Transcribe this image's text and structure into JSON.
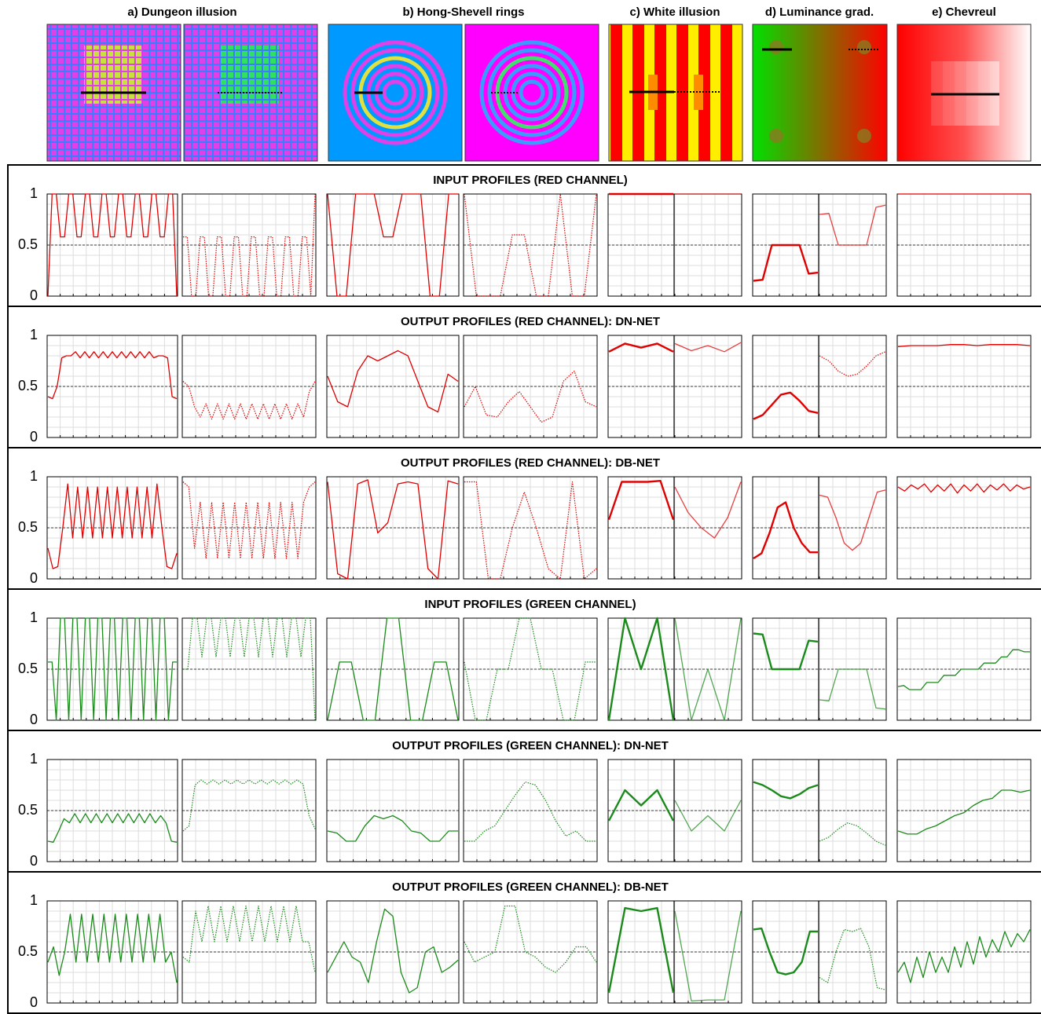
{
  "panels": [
    "a) Dungeon illusion",
    "b) Hong-Shevell rings",
    "c) White illusion",
    "d) Luminance grad.",
    "e) Chevreul"
  ],
  "chart_data": [
    {
      "type": "line",
      "title": "INPUT PROFILES (RED CHANNEL)",
      "color": "#e00000",
      "ylim": [
        0,
        1
      ],
      "yticks": [
        0,
        0.5,
        1
      ],
      "series": [
        {
          "style": "solid",
          "values": [
            0,
            1,
            1,
            0.58,
            0.58,
            1,
            1,
            0.58,
            0.58,
            1,
            1,
            0.58,
            0.58,
            1,
            1,
            0.58,
            0.58,
            1,
            1,
            0.58,
            0.58,
            1,
            1,
            0.58,
            0.58,
            1,
            1,
            0.58,
            0.58,
            1,
            1,
            0
          ]
        },
        {
          "style": "dotted",
          "values": [
            0.58,
            0.58,
            0,
            0,
            0.58,
            0.58,
            0,
            0,
            0.58,
            0.58,
            0,
            0,
            0.58,
            0.58,
            0,
            0,
            0.58,
            0.58,
            0,
            0,
            0.58,
            0.58,
            0,
            0,
            0.58,
            0.58,
            0,
            0,
            0.58,
            0.58,
            0,
            1
          ]
        },
        {
          "style": "solid",
          "values": [
            1,
            0,
            0,
            1,
            1,
            1,
            0.58,
            0.58,
            1,
            1,
            1,
            0,
            0,
            1,
            1
          ]
        },
        {
          "style": "dotted",
          "values": [
            1,
            0,
            0,
            0,
            0.6,
            0.6,
            0,
            0,
            1,
            0,
            0,
            1
          ]
        },
        {
          "style": "bold",
          "values": [
            1,
            1,
            1,
            1,
            1
          ]
        },
        {
          "style": "solid",
          "values": [
            1,
            1,
            1,
            1,
            1
          ]
        },
        {
          "style": "bold",
          "values": [
            0.15,
            0.16,
            0.5,
            0.5,
            0.5,
            0.5,
            0.22,
            0.23
          ]
        },
        {
          "style": "solid",
          "values": [
            0.8,
            0.81,
            0.5,
            0.5,
            0.5,
            0.5,
            0.87,
            0.89
          ]
        },
        {
          "style": "solid",
          "values": [
            1,
            1,
            1,
            1,
            1,
            1,
            1,
            1,
            1,
            1
          ]
        }
      ]
    },
    {
      "type": "line",
      "title": "OUTPUT PROFILES (RED CHANNEL): DN-NET",
      "color": "#e00000",
      "ylim": [
        0,
        1
      ],
      "yticks": [
        0,
        0.5,
        1
      ],
      "series": [
        {
          "style": "solid",
          "values": [
            0.4,
            0.38,
            0.5,
            0.78,
            0.8,
            0.8,
            0.84,
            0.78,
            0.84,
            0.78,
            0.84,
            0.78,
            0.84,
            0.78,
            0.84,
            0.78,
            0.84,
            0.78,
            0.84,
            0.78,
            0.84,
            0.78,
            0.84,
            0.78,
            0.8,
            0.8,
            0.78,
            0.4,
            0.38
          ]
        },
        {
          "style": "dotted",
          "values": [
            0.55,
            0.5,
            0.3,
            0.2,
            0.33,
            0.18,
            0.33,
            0.18,
            0.33,
            0.18,
            0.33,
            0.18,
            0.33,
            0.18,
            0.33,
            0.18,
            0.33,
            0.18,
            0.33,
            0.18,
            0.33,
            0.2,
            0.45,
            0.55
          ]
        },
        {
          "style": "solid",
          "values": [
            0.6,
            0.35,
            0.3,
            0.65,
            0.8,
            0.75,
            0.8,
            0.85,
            0.8,
            0.55,
            0.3,
            0.25,
            0.62,
            0.55
          ]
        },
        {
          "style": "dotted",
          "values": [
            0.3,
            0.5,
            0.22,
            0.2,
            0.35,
            0.45,
            0.3,
            0.15,
            0.2,
            0.55,
            0.65,
            0.35,
            0.3
          ]
        },
        {
          "style": "bold",
          "values": [
            0.84,
            0.92,
            0.88,
            0.92,
            0.84
          ]
        },
        {
          "style": "solid",
          "values": [
            0.92,
            0.85,
            0.9,
            0.84,
            0.93
          ]
        },
        {
          "style": "bold",
          "values": [
            0.18,
            0.22,
            0.32,
            0.42,
            0.44,
            0.36,
            0.26,
            0.24
          ]
        },
        {
          "style": "dotted",
          "values": [
            0.8,
            0.75,
            0.65,
            0.6,
            0.62,
            0.7,
            0.8,
            0.84
          ]
        },
        {
          "style": "solid",
          "values": [
            0.89,
            0.9,
            0.9,
            0.9,
            0.91,
            0.91,
            0.9,
            0.91,
            0.91,
            0.91,
            0.9
          ]
        }
      ]
    },
    {
      "type": "line",
      "title": "OUTPUT PROFILES (RED CHANNEL): DB-NET",
      "color": "#e00000",
      "ylim": [
        0,
        1
      ],
      "yticks": [
        0,
        0.5,
        1
      ],
      "series": [
        {
          "style": "solid",
          "values": [
            0.3,
            0.1,
            0.12,
            0.5,
            0.93,
            0.4,
            0.9,
            0.4,
            0.9,
            0.4,
            0.9,
            0.4,
            0.9,
            0.4,
            0.9,
            0.4,
            0.9,
            0.4,
            0.9,
            0.4,
            0.9,
            0.4,
            0.93,
            0.5,
            0.12,
            0.1,
            0.25
          ]
        },
        {
          "style": "dotted",
          "values": [
            0.95,
            0.9,
            0.3,
            0.75,
            0.2,
            0.75,
            0.2,
            0.75,
            0.2,
            0.75,
            0.2,
            0.75,
            0.2,
            0.75,
            0.2,
            0.75,
            0.2,
            0.75,
            0.2,
            0.75,
            0.2,
            0.75,
            0.9,
            0.95
          ]
        },
        {
          "style": "solid",
          "values": [
            0.95,
            0.05,
            0,
            0.93,
            0.97,
            0.45,
            0.55,
            0.93,
            0.95,
            0.93,
            0.1,
            0,
            0.96,
            0.93
          ]
        },
        {
          "style": "dotted",
          "values": [
            0.95,
            0.95,
            0,
            0,
            0.5,
            0.85,
            0.5,
            0.1,
            0,
            0.95,
            0,
            0.1
          ]
        },
        {
          "style": "bold",
          "values": [
            0.58,
            0.95,
            0.95,
            0.95,
            0.96,
            0.58
          ]
        },
        {
          "style": "solid",
          "values": [
            0.9,
            0.65,
            0.5,
            0.4,
            0.6,
            0.95
          ]
        },
        {
          "style": "bold",
          "values": [
            0.2,
            0.25,
            0.45,
            0.7,
            0.75,
            0.5,
            0.35,
            0.26,
            0.26
          ]
        },
        {
          "style": "solid",
          "values": [
            0.82,
            0.8,
            0.6,
            0.35,
            0.28,
            0.35,
            0.6,
            0.85,
            0.87
          ]
        },
        {
          "style": "solid",
          "values": [
            0.9,
            0.86,
            0.92,
            0.88,
            0.93,
            0.85,
            0.92,
            0.86,
            0.93,
            0.84,
            0.92,
            0.86,
            0.93,
            0.85,
            0.92,
            0.87,
            0.93,
            0.86,
            0.92,
            0.88,
            0.9
          ]
        }
      ]
    },
    {
      "type": "line",
      "title": "INPUT PROFILES (GREEN CHANNEL)",
      "color": "#1a8a1a",
      "ylim": [
        0,
        1
      ],
      "yticks": [
        0,
        0.5,
        1
      ],
      "series": [
        {
          "style": "solid",
          "values": [
            0.57,
            0.57,
            0,
            1,
            1,
            0,
            1,
            1,
            0,
            1,
            1,
            0,
            1,
            1,
            0,
            1,
            1,
            0,
            1,
            1,
            0,
            1,
            1,
            0,
            1,
            1,
            0,
            1,
            1,
            0,
            0.57,
            0.57
          ]
        },
        {
          "style": "dotted",
          "values": [
            0.5,
            0.5,
            1,
            1,
            0.62,
            1,
            1,
            0.62,
            1,
            1,
            0.62,
            1,
            1,
            0.62,
            1,
            1,
            0.62,
            1,
            1,
            0.62,
            1,
            1,
            0.62,
            1,
            1,
            0.62,
            1,
            1,
            0
          ]
        },
        {
          "style": "solid",
          "values": [
            0,
            0.57,
            0.57,
            0,
            0,
            1,
            1,
            0,
            0,
            0.57,
            0.57,
            0
          ]
        },
        {
          "style": "dotted",
          "values": [
            0.57,
            0,
            0,
            0.5,
            0.5,
            1,
            1,
            0.5,
            0.5,
            0,
            0,
            0.57,
            0.57
          ]
        },
        {
          "style": "bold",
          "values": [
            0,
            1,
            0.5,
            1,
            0
          ]
        },
        {
          "style": "solid",
          "values": [
            1,
            0,
            0.5,
            0,
            1
          ]
        },
        {
          "style": "bold",
          "values": [
            0.85,
            0.84,
            0.5,
            0.5,
            0.5,
            0.5,
            0.78,
            0.77
          ]
        },
        {
          "style": "solid",
          "values": [
            0.2,
            0.19,
            0.5,
            0.5,
            0.5,
            0.5,
            0.12,
            0.11
          ]
        },
        {
          "style": "solid",
          "values": [
            0.33,
            0.34,
            0.3,
            0.3,
            0.3,
            0.37,
            0.37,
            0.37,
            0.44,
            0.44,
            0.44,
            0.5,
            0.5,
            0.5,
            0.5,
            0.56,
            0.56,
            0.56,
            0.62,
            0.62,
            0.69,
            0.69,
            0.67,
            0.67
          ]
        }
      ]
    },
    {
      "type": "line",
      "title": "OUTPUT PROFILES (GREEN CHANNEL): DN-NET",
      "color": "#1a8a1a",
      "ylim": [
        0,
        1
      ],
      "yticks": [
        0,
        0.5,
        1
      ],
      "series": [
        {
          "style": "solid",
          "values": [
            0.2,
            0.19,
            0.3,
            0.42,
            0.38,
            0.47,
            0.38,
            0.47,
            0.38,
            0.47,
            0.38,
            0.47,
            0.38,
            0.47,
            0.38,
            0.47,
            0.38,
            0.47,
            0.38,
            0.47,
            0.38,
            0.45,
            0.38,
            0.2,
            0.19
          ]
        },
        {
          "style": "dotted",
          "values": [
            0.3,
            0.35,
            0.75,
            0.8,
            0.76,
            0.8,
            0.76,
            0.8,
            0.76,
            0.8,
            0.76,
            0.8,
            0.76,
            0.8,
            0.76,
            0.8,
            0.76,
            0.8,
            0.76,
            0.8,
            0.76,
            0.45,
            0.32
          ]
        },
        {
          "style": "solid",
          "values": [
            0.3,
            0.28,
            0.2,
            0.2,
            0.35,
            0.45,
            0.42,
            0.45,
            0.4,
            0.3,
            0.28,
            0.2,
            0.2,
            0.3,
            0.3
          ]
        },
        {
          "style": "dotted",
          "values": [
            0.2,
            0.2,
            0.3,
            0.35,
            0.5,
            0.65,
            0.78,
            0.75,
            0.6,
            0.4,
            0.25,
            0.3,
            0.2,
            0.2
          ]
        },
        {
          "style": "bold",
          "values": [
            0.4,
            0.7,
            0.55,
            0.7,
            0.4
          ]
        },
        {
          "style": "solid",
          "values": [
            0.6,
            0.3,
            0.45,
            0.3,
            0.6
          ]
        },
        {
          "style": "bold",
          "values": [
            0.78,
            0.75,
            0.7,
            0.64,
            0.62,
            0.66,
            0.72,
            0.75
          ]
        },
        {
          "style": "dotted",
          "values": [
            0.2,
            0.24,
            0.32,
            0.38,
            0.35,
            0.28,
            0.2,
            0.16
          ]
        },
        {
          "style": "solid",
          "values": [
            0.3,
            0.27,
            0.27,
            0.32,
            0.35,
            0.4,
            0.45,
            0.48,
            0.55,
            0.6,
            0.62,
            0.7,
            0.7,
            0.68,
            0.7
          ]
        }
      ]
    },
    {
      "type": "line",
      "title": "OUTPUT PROFILES (GREEN CHANNEL): DB-NET",
      "color": "#1a8a1a",
      "ylim": [
        0,
        1
      ],
      "yticks": [
        0,
        0.5,
        1
      ],
      "series": [
        {
          "style": "solid",
          "values": [
            0.4,
            0.55,
            0.27,
            0.5,
            0.87,
            0.4,
            0.87,
            0.4,
            0.87,
            0.4,
            0.87,
            0.4,
            0.87,
            0.4,
            0.87,
            0.4,
            0.87,
            0.4,
            0.87,
            0.4,
            0.87,
            0.4,
            0.5,
            0.2
          ]
        },
        {
          "style": "dotted",
          "values": [
            0.45,
            0.4,
            0.9,
            0.6,
            0.95,
            0.6,
            0.95,
            0.6,
            0.95,
            0.6,
            0.95,
            0.6,
            0.95,
            0.6,
            0.95,
            0.6,
            0.95,
            0.6,
            0.95,
            0.6,
            0.6,
            0.3
          ]
        },
        {
          "style": "solid",
          "values": [
            0.3,
            0.45,
            0.6,
            0.45,
            0.4,
            0.2,
            0.6,
            0.92,
            0.85,
            0.3,
            0.1,
            0.15,
            0.5,
            0.55,
            0.3,
            0.35,
            0.42
          ]
        },
        {
          "style": "dotted",
          "values": [
            0.6,
            0.4,
            0.45,
            0.5,
            0.95,
            0.95,
            0.5,
            0.45,
            0.35,
            0.3,
            0.4,
            0.55,
            0.55,
            0.4
          ]
        },
        {
          "style": "bold",
          "values": [
            0.1,
            0.93,
            0.9,
            0.93,
            0.1
          ]
        },
        {
          "style": "solid",
          "values": [
            0.9,
            0.02,
            0.03,
            0.03,
            0.9
          ]
        },
        {
          "style": "bold",
          "values": [
            0.72,
            0.73,
            0.5,
            0.3,
            0.28,
            0.3,
            0.4,
            0.7,
            0.7
          ]
        },
        {
          "style": "dotted",
          "values": [
            0.25,
            0.2,
            0.5,
            0.72,
            0.7,
            0.73,
            0.55,
            0.15,
            0.13
          ]
        },
        {
          "style": "solid",
          "values": [
            0.3,
            0.4,
            0.2,
            0.45,
            0.25,
            0.5,
            0.3,
            0.45,
            0.3,
            0.55,
            0.35,
            0.6,
            0.38,
            0.65,
            0.45,
            0.62,
            0.5,
            0.7,
            0.55,
            0.68,
            0.6,
            0.72
          ]
        }
      ]
    }
  ]
}
